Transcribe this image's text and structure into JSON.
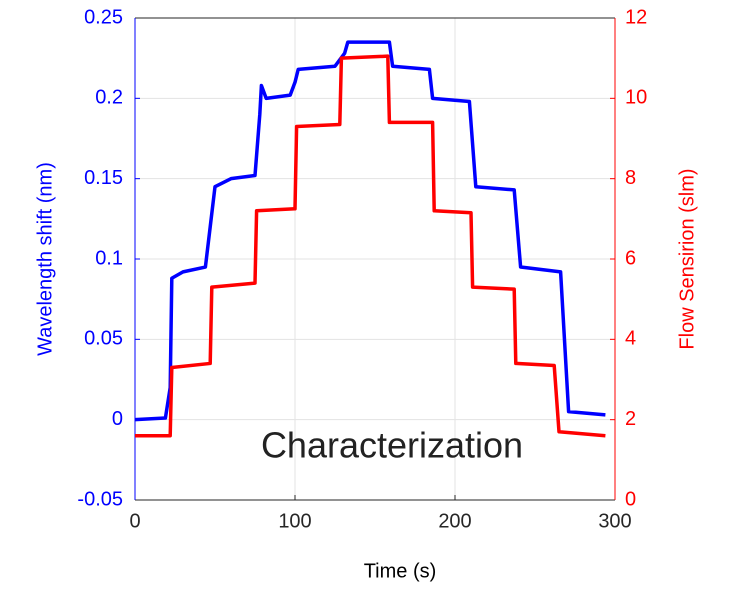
{
  "chart_data": {
    "type": "line",
    "xlabel": "Time (s)",
    "ylabel": "Wavelength shift (nm)",
    "y2label": "Flow Sensirion (slm)",
    "annotation": "Characterization",
    "xlim": [
      0,
      300
    ],
    "xticks": [
      0,
      100,
      200,
      300
    ],
    "ylim": [
      -0.05,
      0.25
    ],
    "yticks": [
      -0.05,
      0,
      0.05,
      0.1,
      0.15,
      0.2,
      0.25
    ],
    "y2lim": [
      0,
      12
    ],
    "y2ticks": [
      0,
      2,
      4,
      6,
      8,
      10,
      12
    ],
    "grid": true,
    "series": [
      {
        "name": "Wavelength shift (nm)",
        "color": "#0000ff",
        "x": [
          0,
          19,
          22,
          23,
          30,
          44,
          47,
          50,
          60,
          75,
          78,
          79,
          82,
          97,
          100,
          102,
          125,
          131,
          133,
          159,
          161,
          184,
          186,
          209,
          213,
          237,
          241,
          266,
          271,
          294
        ],
        "values": [
          0,
          0.001,
          0.02,
          0.088,
          0.092,
          0.095,
          0.12,
          0.145,
          0.15,
          0.152,
          0.19,
          0.208,
          0.2,
          0.202,
          0.21,
          0.218,
          0.22,
          0.228,
          0.235,
          0.235,
          0.22,
          0.218,
          0.2,
          0.198,
          0.145,
          0.143,
          0.095,
          0.092,
          0.005,
          0.003
        ]
      },
      {
        "name": "Flow Sensirion (slm)",
        "color": "#ff0000",
        "axis": "y2",
        "x": [
          0,
          22,
          23,
          47,
          48,
          75,
          76,
          100,
          101,
          128,
          129,
          158,
          159,
          186,
          187,
          210,
          211,
          237,
          238,
          262,
          265,
          294
        ],
        "values": [
          1.6,
          1.6,
          3.3,
          3.4,
          5.3,
          5.4,
          7.2,
          7.25,
          9.3,
          9.35,
          11.0,
          11.05,
          9.4,
          9.4,
          7.2,
          7.15,
          5.3,
          5.25,
          3.4,
          3.35,
          1.7,
          1.6
        ]
      }
    ]
  }
}
